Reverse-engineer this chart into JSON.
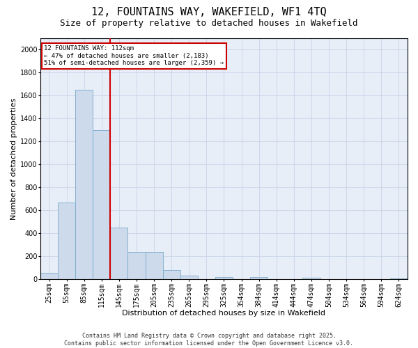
{
  "title1": "12, FOUNTAINS WAY, WAKEFIELD, WF1 4TQ",
  "title2": "Size of property relative to detached houses in Wakefield",
  "xlabel": "Distribution of detached houses by size in Wakefield",
  "ylabel": "Number of detached properties",
  "categories": [
    "25sqm",
    "55sqm",
    "85sqm",
    "115sqm",
    "145sqm",
    "175sqm",
    "205sqm",
    "235sqm",
    "265sqm",
    "295sqm",
    "325sqm",
    "354sqm",
    "384sqm",
    "414sqm",
    "444sqm",
    "474sqm",
    "504sqm",
    "534sqm",
    "564sqm",
    "594sqm",
    "624sqm"
  ],
  "values": [
    55,
    670,
    1650,
    1300,
    450,
    240,
    240,
    80,
    35,
    0,
    20,
    0,
    20,
    0,
    0,
    15,
    0,
    0,
    0,
    0,
    10
  ],
  "bar_color": "#ccdaec",
  "bar_edge_color": "#7aaacc",
  "vline_color": "#cc0000",
  "annotation_line1": "12 FOUNTAINS WAY: 112sqm",
  "annotation_line2": "← 47% of detached houses are smaller (2,183)",
  "annotation_line3": "51% of semi-detached houses are larger (2,359) →",
  "annotation_box_color": "#cc0000",
  "ylim": [
    0,
    2100
  ],
  "yticks": [
    0,
    200,
    400,
    600,
    800,
    1000,
    1200,
    1400,
    1600,
    1800,
    2000
  ],
  "grid_color": "#c8d4e8",
  "bg_color": "#e8eef8",
  "footer1": "Contains HM Land Registry data © Crown copyright and database right 2025.",
  "footer2": "Contains public sector information licensed under the Open Government Licence v3.0.",
  "title_fontsize": 11,
  "subtitle_fontsize": 9,
  "axis_label_fontsize": 8,
  "tick_fontsize": 7,
  "footer_fontsize": 6
}
